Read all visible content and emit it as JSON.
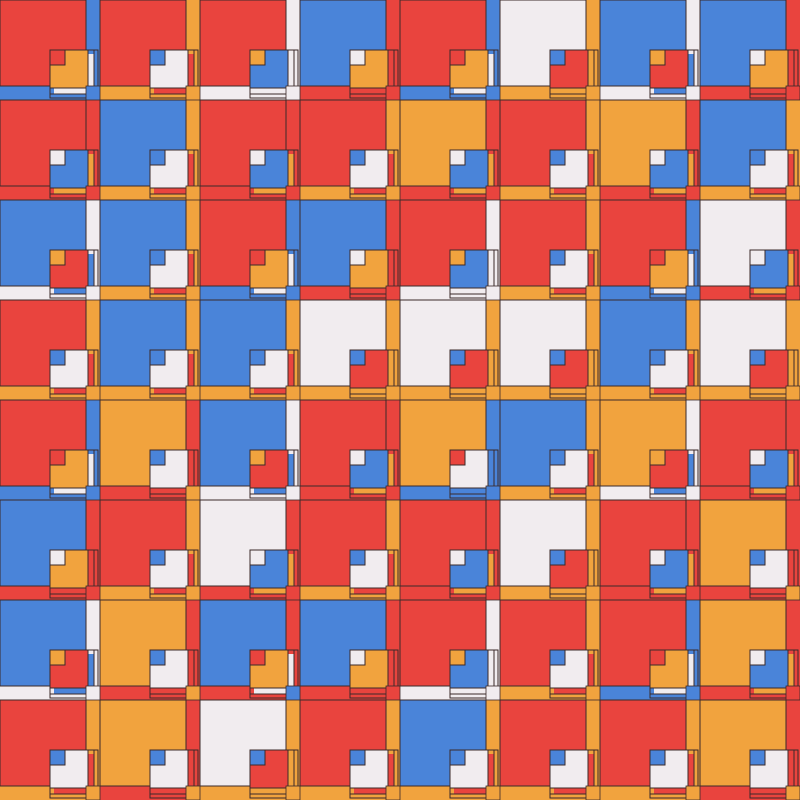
{
  "palette": {
    "r": "#e9443e",
    "b": "#4a84d9",
    "o": "#f1a33e",
    "w": "#f1ecef"
  },
  "tiles": [
    "rrrbrwbb",
    "rbrrorob",
    "bbrbrrrw",
    "rbbwwwbw",
    "robrobor",
    "brwrrwro",
    "bobbrrro",
    "rowrbrro"
  ]
}
